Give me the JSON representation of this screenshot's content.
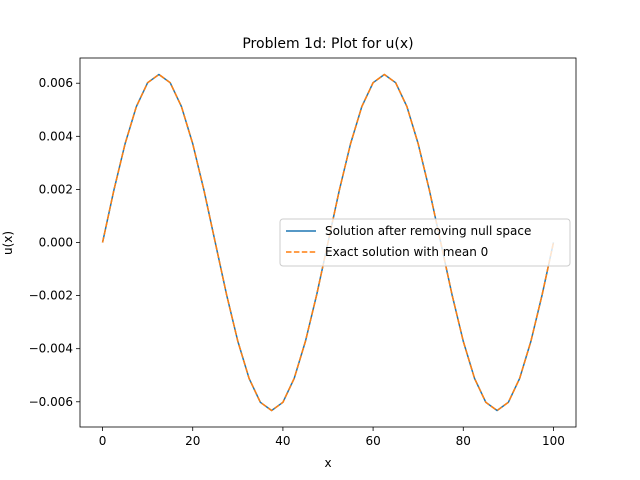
{
  "chart_data": {
    "type": "line",
    "title": "Problem 1d: Plot for u(x)",
    "xlabel": "x",
    "ylabel": "u(x)",
    "xlim": [
      -5,
      105
    ],
    "ylim": [
      -0.00695,
      0.00695
    ],
    "xticks": [
      0,
      20,
      40,
      60,
      80,
      100
    ],
    "xtick_labels": [
      "0",
      "20",
      "40",
      "60",
      "80",
      "100"
    ],
    "yticks": [
      -0.006,
      -0.004,
      -0.002,
      0.0,
      0.002,
      0.004,
      0.006
    ],
    "ytick_labels": [
      "−0.006",
      "−0.004",
      "−0.002",
      "0.000",
      "0.002",
      "0.004",
      "0.006"
    ],
    "grid": false,
    "legend_position": "center-right",
    "x": [
      0,
      2.5,
      5,
      7.5,
      10,
      12.5,
      15,
      17.5,
      20,
      22.5,
      25,
      27.5,
      30,
      32.5,
      35,
      37.5,
      40,
      42.5,
      45,
      47.5,
      50,
      52.5,
      55,
      57.5,
      60,
      62.5,
      65,
      67.5,
      70,
      72.5,
      75,
      77.5,
      80,
      82.5,
      85,
      87.5,
      90,
      92.5,
      95,
      97.5,
      100
    ],
    "series": [
      {
        "name": "Solution after removing null space",
        "color": "#1f77b4",
        "style": "solid",
        "values": [
          0.0,
          0.00196,
          0.00372,
          0.00512,
          0.00602,
          0.00633,
          0.00602,
          0.00512,
          0.00372,
          0.00196,
          0.0,
          -0.00196,
          -0.00372,
          -0.00512,
          -0.00602,
          -0.00633,
          -0.00602,
          -0.00512,
          -0.00372,
          -0.00196,
          0.0,
          0.00196,
          0.00372,
          0.00512,
          0.00602,
          0.00633,
          0.00602,
          0.00512,
          0.00372,
          0.00196,
          0.0,
          -0.00196,
          -0.00372,
          -0.00512,
          -0.00602,
          -0.00633,
          -0.00602,
          -0.00512,
          -0.00372,
          -0.00196,
          0.0
        ]
      },
      {
        "name": "Exact solution with mean 0",
        "color": "#ff7f0e",
        "style": "dashed",
        "values": [
          0.0,
          0.00196,
          0.00372,
          0.00512,
          0.00602,
          0.00633,
          0.00602,
          0.00512,
          0.00372,
          0.00196,
          0.0,
          -0.00196,
          -0.00372,
          -0.00512,
          -0.00602,
          -0.00633,
          -0.00602,
          -0.00512,
          -0.00372,
          -0.00196,
          0.0,
          0.00196,
          0.00372,
          0.00512,
          0.00602,
          0.00633,
          0.00602,
          0.00512,
          0.00372,
          0.00196,
          0.0,
          -0.00196,
          -0.00372,
          -0.00512,
          -0.00602,
          -0.00633,
          -0.00602,
          -0.00512,
          -0.00372,
          -0.00196,
          0.0
        ]
      }
    ]
  }
}
